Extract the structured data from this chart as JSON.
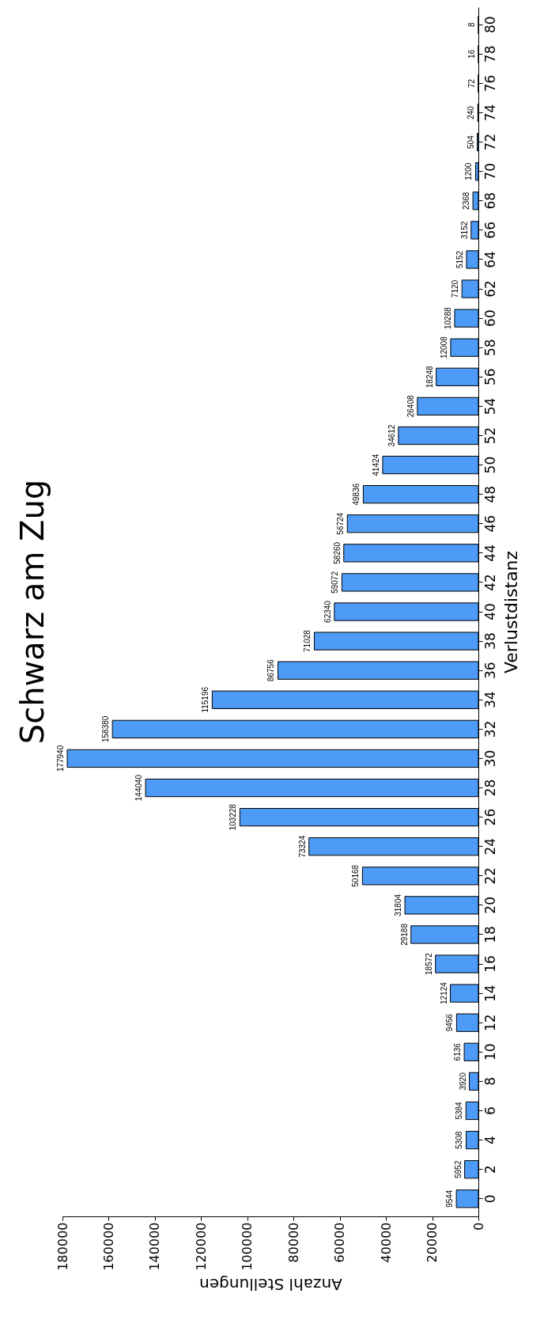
{
  "chart_data": {
    "type": "bar",
    "orientation": "horizontal",
    "title": "Schwarz am Zug",
    "xlabel": "Anzahl Stellungen",
    "ylabel": "Verlustdistanz",
    "categories": [
      "80",
      "78",
      "76",
      "74",
      "72",
      "70",
      "68",
      "66",
      "64",
      "62",
      "60",
      "58",
      "56",
      "54",
      "52",
      "50",
      "48",
      "46",
      "44",
      "42",
      "40",
      "38",
      "36",
      "34",
      "32",
      "30",
      "28",
      "26",
      "24",
      "22",
      "20",
      "18",
      "16",
      "14",
      "12",
      "10",
      "8",
      "6",
      "4",
      "2",
      "0"
    ],
    "values": [
      8,
      16,
      72,
      240,
      504,
      1200,
      2368,
      3152,
      5152,
      7120,
      10288,
      12008,
      18248,
      26408,
      34612,
      41424,
      49836,
      56724,
      58260,
      59072,
      62340,
      71028,
      86756,
      115196,
      158380,
      177940,
      144040,
      103228,
      73324,
      50168,
      31804,
      29188,
      18572,
      12124,
      9456,
      6136,
      3920,
      5384,
      5308,
      5952,
      9544
    ],
    "color": "#4d9bf7",
    "xlim": [
      180000,
      0
    ],
    "xticks": [
      0,
      20000,
      40000,
      60000,
      80000,
      100000,
      120000,
      140000,
      160000,
      180000
    ],
    "grid": false,
    "data_labels": true
  }
}
